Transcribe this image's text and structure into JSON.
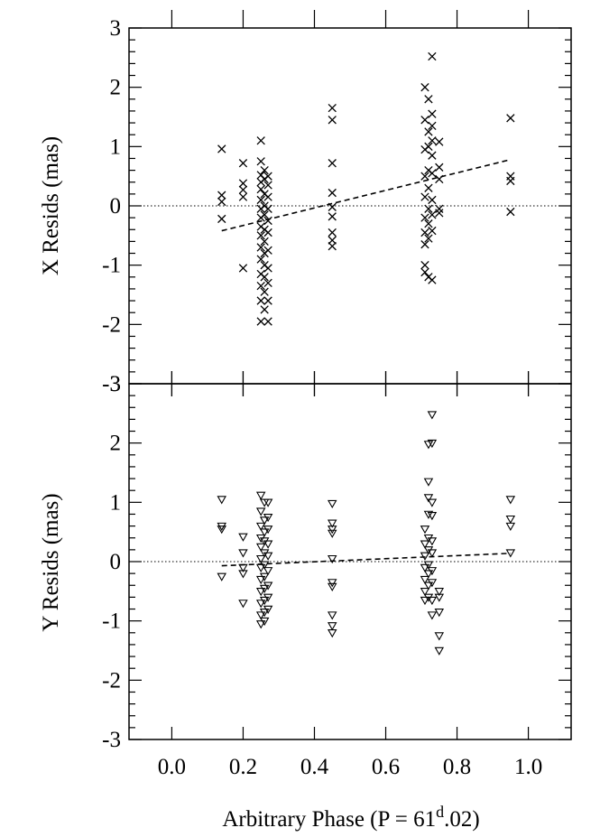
{
  "chart_data": {
    "type": "scatter",
    "xlabel": "Arbitrary Phase (P = 61d.02)",
    "xlabel_parts": {
      "before": "Arbitrary Phase (P = 61",
      "sup": "d",
      "after": ".02)"
    },
    "xlim": [
      -0.12,
      1.12
    ],
    "xticks": [
      0.0,
      0.2,
      0.4,
      0.6,
      0.8,
      1.0
    ],
    "xtick_labels": [
      "0.0",
      "0.2",
      "0.4",
      "0.6",
      "0.8",
      "1.0"
    ],
    "panels": [
      {
        "name": "x-resids",
        "ylabel": "X Resids (mas)",
        "ylim": [
          -3,
          3
        ],
        "yticks": [
          -3,
          -2,
          -1,
          0,
          1,
          2,
          3
        ],
        "ytick_labels": [
          "-3",
          "-2",
          "-1",
          "0",
          "1",
          "2",
          "3"
        ],
        "marker": "x",
        "fit_line": {
          "x": [
            0.14,
            0.95
          ],
          "y": [
            -0.42,
            0.78
          ]
        },
        "points": [
          [
            0.14,
            0.96
          ],
          [
            0.14,
            0.18
          ],
          [
            0.14,
            0.07
          ],
          [
            0.14,
            -0.22
          ],
          [
            0.2,
            0.72
          ],
          [
            0.2,
            0.38
          ],
          [
            0.2,
            0.27
          ],
          [
            0.2,
            0.15
          ],
          [
            0.2,
            -1.05
          ],
          [
            0.25,
            1.1
          ],
          [
            0.25,
            0.75
          ],
          [
            0.25,
            0.52
          ],
          [
            0.25,
            0.4
          ],
          [
            0.25,
            0.28
          ],
          [
            0.25,
            0.1
          ],
          [
            0.25,
            -0.05
          ],
          [
            0.25,
            -0.2
          ],
          [
            0.25,
            -0.35
          ],
          [
            0.25,
            -0.5
          ],
          [
            0.25,
            -0.7
          ],
          [
            0.25,
            -0.9
          ],
          [
            0.25,
            -1.15
          ],
          [
            0.25,
            -1.35
          ],
          [
            0.25,
            -1.6
          ],
          [
            0.25,
            -1.95
          ],
          [
            0.26,
            0.6
          ],
          [
            0.26,
            0.45
          ],
          [
            0.26,
            0.2
          ],
          [
            0.26,
            0.0
          ],
          [
            0.26,
            -0.15
          ],
          [
            0.26,
            -0.4
          ],
          [
            0.26,
            -0.6
          ],
          [
            0.26,
            -0.8
          ],
          [
            0.26,
            -1.0
          ],
          [
            0.26,
            -1.2
          ],
          [
            0.26,
            -1.45
          ],
          [
            0.26,
            -1.75
          ],
          [
            0.27,
            0.5
          ],
          [
            0.27,
            0.35
          ],
          [
            0.27,
            0.15
          ],
          [
            0.27,
            -0.05
          ],
          [
            0.27,
            -0.25
          ],
          [
            0.27,
            -0.45
          ],
          [
            0.27,
            -0.75
          ],
          [
            0.27,
            -1.05
          ],
          [
            0.27,
            -1.3
          ],
          [
            0.27,
            -1.6
          ],
          [
            0.27,
            -1.95
          ],
          [
            0.45,
            1.65
          ],
          [
            0.45,
            1.45
          ],
          [
            0.45,
            0.72
          ],
          [
            0.45,
            0.22
          ],
          [
            0.45,
            -0.02
          ],
          [
            0.45,
            -0.18
          ],
          [
            0.45,
            -0.45
          ],
          [
            0.45,
            -0.58
          ],
          [
            0.45,
            -0.68
          ],
          [
            0.71,
            2.0
          ],
          [
            0.71,
            1.45
          ],
          [
            0.71,
            0.95
          ],
          [
            0.71,
            0.5
          ],
          [
            0.71,
            0.15
          ],
          [
            0.71,
            -0.2
          ],
          [
            0.71,
            -0.45
          ],
          [
            0.71,
            -0.65
          ],
          [
            0.71,
            -1.0
          ],
          [
            0.71,
            -1.12
          ],
          [
            0.72,
            1.8
          ],
          [
            0.72,
            1.25
          ],
          [
            0.72,
            1.0
          ],
          [
            0.72,
            0.6
          ],
          [
            0.72,
            0.3
          ],
          [
            0.72,
            -0.05
          ],
          [
            0.72,
            -0.3
          ],
          [
            0.72,
            -0.55
          ],
          [
            0.72,
            -1.2
          ],
          [
            0.73,
            2.52
          ],
          [
            0.73,
            1.55
          ],
          [
            0.73,
            1.35
          ],
          [
            0.73,
            1.1
          ],
          [
            0.73,
            0.85
          ],
          [
            0.73,
            0.55
          ],
          [
            0.73,
            0.1
          ],
          [
            0.73,
            -0.15
          ],
          [
            0.73,
            -0.42
          ],
          [
            0.73,
            -1.25
          ],
          [
            0.75,
            1.08
          ],
          [
            0.75,
            0.65
          ],
          [
            0.75,
            0.45
          ],
          [
            0.75,
            -0.05
          ],
          [
            0.75,
            -0.12
          ],
          [
            0.95,
            1.48
          ],
          [
            0.95,
            0.5
          ],
          [
            0.95,
            0.42
          ],
          [
            0.95,
            -0.1
          ]
        ]
      },
      {
        "name": "y-resids",
        "ylabel": "Y Resids (mas)",
        "ylim": [
          -3,
          3
        ],
        "yticks": [
          -3,
          -2,
          -1,
          0,
          1,
          2,
          3
        ],
        "ytick_labels": [
          "-3",
          "-2",
          "-1",
          "0",
          "1",
          "2",
          "3"
        ],
        "marker": "triangle-down",
        "fit_line": {
          "x": [
            0.14,
            0.95
          ],
          "y": [
            -0.07,
            0.14
          ]
        },
        "points": [
          [
            0.14,
            1.05
          ],
          [
            0.14,
            0.6
          ],
          [
            0.14,
            0.55
          ],
          [
            0.14,
            -0.25
          ],
          [
            0.2,
            0.42
          ],
          [
            0.2,
            0.15
          ],
          [
            0.2,
            -0.1
          ],
          [
            0.2,
            -0.2
          ],
          [
            0.2,
            -0.7
          ],
          [
            0.25,
            1.12
          ],
          [
            0.25,
            0.85
          ],
          [
            0.25,
            0.6
          ],
          [
            0.25,
            0.4
          ],
          [
            0.25,
            0.25
          ],
          [
            0.25,
            0.05
          ],
          [
            0.25,
            -0.1
          ],
          [
            0.25,
            -0.3
          ],
          [
            0.25,
            -0.5
          ],
          [
            0.25,
            -0.7
          ],
          [
            0.25,
            -0.9
          ],
          [
            0.25,
            -1.05
          ],
          [
            0.26,
            1.0
          ],
          [
            0.26,
            0.7
          ],
          [
            0.26,
            0.5
          ],
          [
            0.26,
            0.35
          ],
          [
            0.26,
            0.15
          ],
          [
            0.26,
            -0.05
          ],
          [
            0.26,
            -0.25
          ],
          [
            0.26,
            -0.45
          ],
          [
            0.26,
            -0.65
          ],
          [
            0.26,
            -0.85
          ],
          [
            0.26,
            -1.0
          ],
          [
            0.27,
            1.0
          ],
          [
            0.27,
            0.75
          ],
          [
            0.27,
            0.55
          ],
          [
            0.27,
            0.3
          ],
          [
            0.27,
            0.1
          ],
          [
            0.27,
            -0.15
          ],
          [
            0.27,
            -0.4
          ],
          [
            0.27,
            -0.6
          ],
          [
            0.27,
            -0.8
          ],
          [
            0.45,
            0.98
          ],
          [
            0.45,
            0.65
          ],
          [
            0.45,
            0.55
          ],
          [
            0.45,
            0.48
          ],
          [
            0.45,
            0.05
          ],
          [
            0.45,
            -0.35
          ],
          [
            0.45,
            -0.42
          ],
          [
            0.45,
            -0.9
          ],
          [
            0.45,
            -1.08
          ],
          [
            0.45,
            -1.2
          ],
          [
            0.71,
            0.55
          ],
          [
            0.71,
            0.3
          ],
          [
            0.71,
            0.1
          ],
          [
            0.71,
            -0.1
          ],
          [
            0.71,
            -0.3
          ],
          [
            0.71,
            -0.5
          ],
          [
            0.71,
            -0.65
          ],
          [
            0.72,
            1.98
          ],
          [
            0.72,
            1.35
          ],
          [
            0.72,
            1.08
          ],
          [
            0.72,
            0.8
          ],
          [
            0.72,
            0.4
          ],
          [
            0.72,
            0.2
          ],
          [
            0.72,
            -0.05
          ],
          [
            0.72,
            -0.2
          ],
          [
            0.72,
            -0.4
          ],
          [
            0.72,
            -0.6
          ],
          [
            0.73,
            2.48
          ],
          [
            0.73,
            2.0
          ],
          [
            0.73,
            1.0
          ],
          [
            0.73,
            0.78
          ],
          [
            0.73,
            0.35
          ],
          [
            0.73,
            0.15
          ],
          [
            0.73,
            -0.15
          ],
          [
            0.73,
            -0.35
          ],
          [
            0.73,
            -0.65
          ],
          [
            0.73,
            -0.9
          ],
          [
            0.75,
            -0.5
          ],
          [
            0.75,
            -0.6
          ],
          [
            0.75,
            -0.85
          ],
          [
            0.75,
            -1.25
          ],
          [
            0.75,
            -1.5
          ],
          [
            0.95,
            1.05
          ],
          [
            0.95,
            0.72
          ],
          [
            0.95,
            0.6
          ],
          [
            0.95,
            0.15
          ]
        ]
      }
    ]
  }
}
